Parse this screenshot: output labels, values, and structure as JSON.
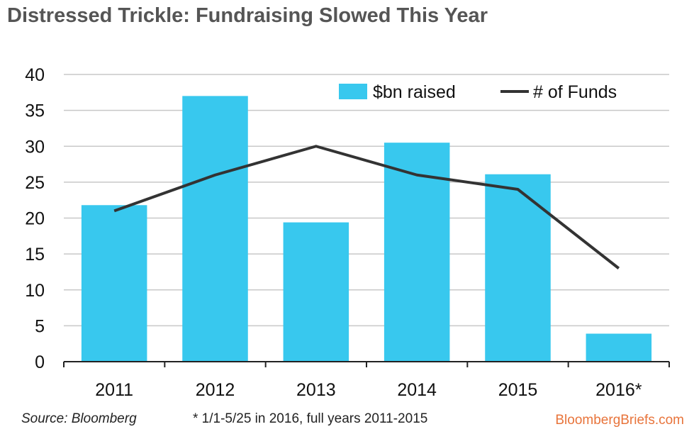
{
  "title": "Distressed Trickle: Fundraising Slowed This Year",
  "chart_data": {
    "type": "bar",
    "categories": [
      "2011",
      "2012",
      "2013",
      "2014",
      "2015",
      "2016*"
    ],
    "series": [
      {
        "name": "$bn raised",
        "type": "bar",
        "color": "#38c8ee",
        "values": [
          21.8,
          37.0,
          19.4,
          30.5,
          26.1,
          3.9
        ]
      },
      {
        "name": "# of Funds",
        "type": "line",
        "color": "#333333",
        "values": [
          21,
          26,
          30,
          26,
          24,
          13
        ]
      }
    ],
    "ylim": [
      0,
      40
    ],
    "yticks": [
      0,
      5,
      10,
      15,
      20,
      25,
      30,
      35,
      40
    ],
    "grid": true,
    "legend_position": "top-right"
  },
  "footer": {
    "source": "Source: Bloomberg",
    "note": "* 1/1-5/25 in 2016,  full years 2011-2015",
    "brand": "BloombergBriefs.com"
  }
}
